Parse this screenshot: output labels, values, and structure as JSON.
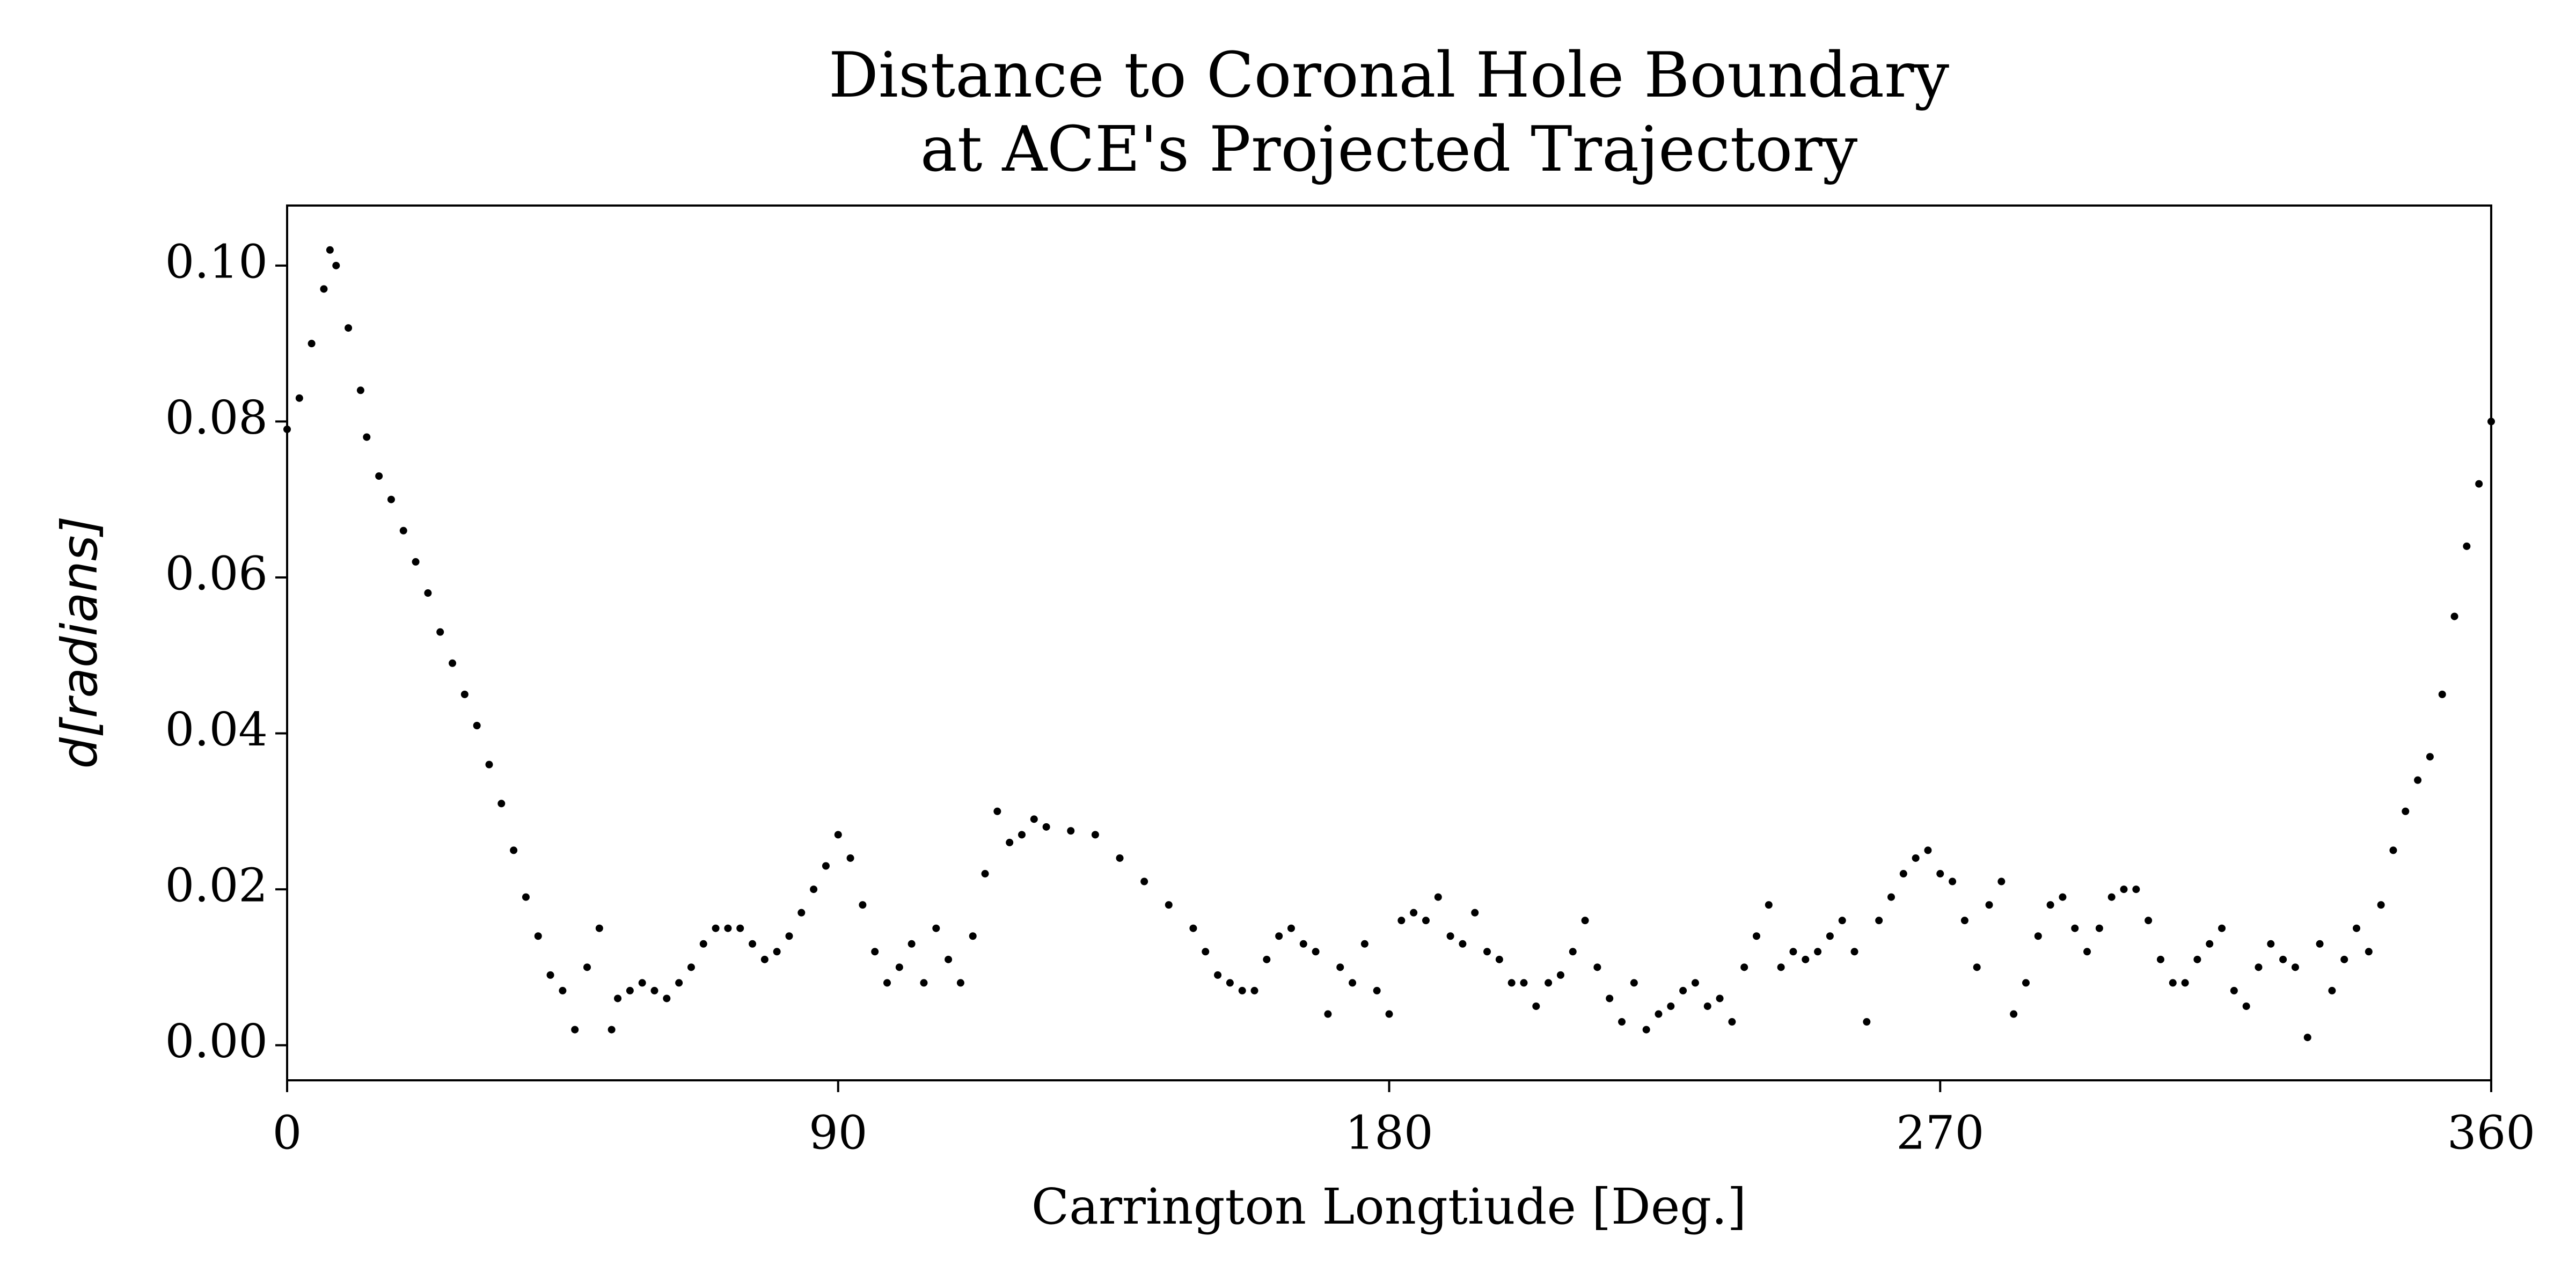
{
  "chart_data": {
    "type": "scatter",
    "title": [
      "Distance to Coronal Hole Boundary",
      "at ACE's Projected Trajectory"
    ],
    "x_label": "Carrington Longtiude [Deg.]",
    "y_label": "d[radians]",
    "color": "#000000",
    "xlim": [
      0,
      360
    ],
    "xticks": [
      0,
      90,
      180,
      270,
      360
    ],
    "ylim": [
      -0.0045,
      0.1077
    ],
    "yticks": [
      {
        "value": 0,
        "label": "0.00"
      },
      {
        "value": 0.02,
        "label": "0.02"
      },
      {
        "value": 0.04,
        "label": "0.04"
      },
      {
        "value": 0.06,
        "label": "0.06"
      },
      {
        "value": 0.08,
        "label": "0.08"
      },
      {
        "value": 0.1,
        "label": "0.10"
      }
    ],
    "grid": false,
    "x": [
      0,
      2,
      4,
      6,
      7,
      8,
      10,
      12,
      13,
      15,
      17,
      19,
      21,
      23,
      25,
      27,
      29,
      31,
      33,
      35,
      37,
      39,
      41,
      43,
      45,
      47,
      49,
      51,
      53,
      54,
      56,
      58,
      60,
      62,
      64,
      66,
      68,
      70,
      72,
      74,
      76,
      78,
      80,
      82,
      84,
      86,
      88,
      90,
      92,
      94,
      96,
      98,
      100,
      102,
      104,
      106,
      108,
      110,
      112,
      114,
      116,
      118,
      120,
      122,
      124,
      128,
      132,
      136,
      140,
      144,
      148,
      150,
      152,
      154,
      156,
      158,
      160,
      162,
      164,
      166,
      168,
      170,
      172,
      174,
      176,
      178,
      180,
      182,
      184,
      186,
      188,
      190,
      192,
      194,
      196,
      198,
      200,
      202,
      204,
      206,
      208,
      210,
      212,
      214,
      216,
      218,
      220,
      222,
      224,
      226,
      228,
      230,
      232,
      234,
      236,
      238,
      240,
      242,
      244,
      246,
      248,
      250,
      252,
      254,
      256,
      258,
      260,
      262,
      264,
      266,
      268,
      270,
      272,
      274,
      276,
      278,
      280,
      282,
      284,
      286,
      288,
      290,
      292,
      294,
      296,
      298,
      300,
      302,
      304,
      306,
      308,
      310,
      312,
      314,
      316,
      318,
      320,
      322,
      324,
      326,
      328,
      330,
      332,
      334,
      336,
      338,
      340,
      342,
      344,
      346,
      348,
      350,
      352,
      354,
      356,
      358,
      360
    ],
    "y": [
      0.079,
      0.083,
      0.09,
      0.097,
      0.102,
      0.1,
      0.092,
      0.084,
      0.078,
      0.073,
      0.07,
      0.066,
      0.062,
      0.058,
      0.053,
      0.049,
      0.045,
      0.041,
      0.036,
      0.031,
      0.025,
      0.019,
      0.014,
      0.009,
      0.007,
      0.002,
      0.01,
      0.015,
      0.002,
      0.006,
      0.007,
      0.008,
      0.007,
      0.006,
      0.008,
      0.01,
      0.013,
      0.015,
      0.015,
      0.015,
      0.013,
      0.011,
      0.012,
      0.014,
      0.017,
      0.02,
      0.023,
      0.027,
      0.024,
      0.018,
      0.012,
      0.008,
      0.01,
      0.013,
      0.008,
      0.015,
      0.011,
      0.008,
      0.014,
      0.022,
      0.03,
      0.026,
      0.027,
      0.029,
      0.028,
      0.0275,
      0.027,
      0.024,
      0.021,
      0.018,
      0.015,
      0.012,
      0.009,
      0.008,
      0.007,
      0.007,
      0.011,
      0.014,
      0.015,
      0.013,
      0.012,
      0.004,
      0.01,
      0.008,
      0.013,
      0.007,
      0.004,
      0.016,
      0.017,
      0.016,
      0.019,
      0.014,
      0.013,
      0.017,
      0.012,
      0.011,
      0.008,
      0.008,
      0.005,
      0.008,
      0.009,
      0.012,
      0.016,
      0.01,
      0.006,
      0.003,
      0.008,
      0.002,
      0.004,
      0.005,
      0.007,
      0.008,
      0.005,
      0.006,
      0.003,
      0.01,
      0.014,
      0.018,
      0.01,
      0.012,
      0.011,
      0.012,
      0.014,
      0.016,
      0.012,
      0.003,
      0.016,
      0.019,
      0.022,
      0.024,
      0.025,
      0.022,
      0.021,
      0.016,
      0.01,
      0.018,
      0.021,
      0.004,
      0.008,
      0.014,
      0.018,
      0.019,
      0.015,
      0.012,
      0.015,
      0.019,
      0.02,
      0.02,
      0.016,
      0.011,
      0.008,
      0.008,
      0.011,
      0.013,
      0.015,
      0.007,
      0.005,
      0.01,
      0.013,
      0.011,
      0.01,
      0.001,
      0.013,
      0.007,
      0.011,
      0.015,
      0.012,
      0.018,
      0.025,
      0.03,
      0.034,
      0.037,
      0.045,
      0.055,
      0.064,
      0.072,
      0.08
    ]
  }
}
